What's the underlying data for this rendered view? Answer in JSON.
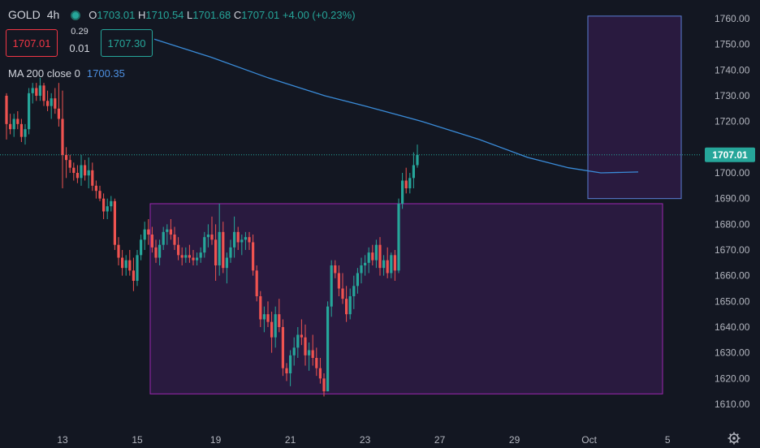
{
  "header": {
    "symbol": "GOLD",
    "timeframe": "4h",
    "open_label": "O",
    "open": "1703.01",
    "high_label": "H",
    "high": "1710.54",
    "low_label": "L",
    "low": "1701.68",
    "close_label": "C",
    "close": "1707.01",
    "change": "+4.00 (+0.23%)"
  },
  "trade": {
    "bid": "1707.01",
    "spread_top": "0.29",
    "spread_bottom": "0.01",
    "ask": "1707.30"
  },
  "indicator": {
    "label": "MA 200 close 0",
    "value": "1700.35"
  },
  "colors": {
    "background": "#131722",
    "up": "#26a69a",
    "down": "#ef5350",
    "ma": "#3a8bd8",
    "box_fill": "#2e1b44",
    "box_border": "#9c27b0",
    "box2_border": "#5b7fd6",
    "price_tag": "#26a69a"
  },
  "chart_data": {
    "type": "candlestick",
    "title": "GOLD 4h",
    "ylim": [
      1605,
      1765
    ],
    "y_ticks": [
      "1760.00",
      "1750.00",
      "1740.00",
      "1730.00",
      "1720.00",
      "1710.00",
      "1700.00",
      "1690.00",
      "1680.00",
      "1670.00",
      "1660.00",
      "1650.00",
      "1640.00",
      "1630.00",
      "1620.00",
      "1610.00"
    ],
    "y_tick_values": [
      1760,
      1750,
      1740,
      1730,
      1720,
      1710,
      1700,
      1690,
      1680,
      1670,
      1660,
      1650,
      1640,
      1630,
      1620,
      1610
    ],
    "x_ticks": [
      {
        "label": "13",
        "i": 15
      },
      {
        "label": "15",
        "i": 35
      },
      {
        "label": "19",
        "i": 56
      },
      {
        "label": "21",
        "i": 76
      },
      {
        "label": "23",
        "i": 96
      },
      {
        "label": "27",
        "i": 116
      },
      {
        "label": "29",
        "i": 136
      },
      {
        "label": "Oct",
        "i": 156
      },
      {
        "label": "5",
        "i": 177
      }
    ],
    "candles": [
      [
        1730,
        1731,
        1713,
        1719
      ],
      [
        1719,
        1723,
        1715,
        1717
      ],
      [
        1717,
        1723,
        1714,
        1721
      ],
      [
        1721,
        1724,
        1717,
        1719
      ],
      [
        1719,
        1721,
        1712,
        1714
      ],
      [
        1714,
        1719,
        1711,
        1717
      ],
      [
        1717,
        1733,
        1715,
        1731
      ],
      [
        1731,
        1735,
        1727,
        1733
      ],
      [
        1733,
        1735,
        1728,
        1730
      ],
      [
        1730,
        1737,
        1728,
        1734
      ],
      [
        1734,
        1735,
        1726,
        1728
      ],
      [
        1728,
        1732,
        1724,
        1726
      ],
      [
        1726,
        1731,
        1721,
        1729
      ],
      [
        1729,
        1733,
        1723,
        1725
      ],
      [
        1725,
        1735,
        1718,
        1721
      ],
      [
        1721,
        1732,
        1694,
        1707
      ],
      [
        1707,
        1710,
        1698,
        1705
      ],
      [
        1705,
        1707,
        1700,
        1702
      ],
      [
        1702,
        1704,
        1697,
        1700
      ],
      [
        1700,
        1703,
        1696,
        1698
      ],
      [
        1698,
        1707,
        1695,
        1703
      ],
      [
        1703,
        1705,
        1697,
        1699
      ],
      [
        1699,
        1706,
        1694,
        1701
      ],
      [
        1701,
        1704,
        1693,
        1695
      ],
      [
        1695,
        1697,
        1690,
        1693
      ],
      [
        1693,
        1695,
        1689,
        1690
      ],
      [
        1690,
        1692,
        1682,
        1685
      ],
      [
        1685,
        1690,
        1682,
        1687
      ],
      [
        1687,
        1691,
        1685,
        1689
      ],
      [
        1689,
        1690,
        1670,
        1672
      ],
      [
        1672,
        1675,
        1664,
        1667
      ],
      [
        1667,
        1670,
        1660,
        1663
      ],
      [
        1663,
        1668,
        1660,
        1666
      ],
      [
        1666,
        1670,
        1660,
        1662
      ],
      [
        1662,
        1667,
        1654,
        1658
      ],
      [
        1658,
        1670,
        1656,
        1668
      ],
      [
        1668,
        1676,
        1666,
        1674
      ],
      [
        1674,
        1681,
        1670,
        1678
      ],
      [
        1678,
        1682,
        1672,
        1676
      ],
      [
        1676,
        1679,
        1669,
        1671
      ],
      [
        1671,
        1674,
        1665,
        1667
      ],
      [
        1667,
        1674,
        1664,
        1672
      ],
      [
        1672,
        1679,
        1670,
        1677
      ],
      [
        1677,
        1680,
        1672,
        1678
      ],
      [
        1678,
        1682,
        1674,
        1676
      ],
      [
        1676,
        1679,
        1670,
        1672
      ],
      [
        1672,
        1675,
        1666,
        1668
      ],
      [
        1668,
        1671,
        1664,
        1667
      ],
      [
        1667,
        1671,
        1665,
        1668
      ],
      [
        1668,
        1672,
        1665,
        1667
      ],
      [
        1667,
        1670,
        1664,
        1666
      ],
      [
        1666,
        1669,
        1664,
        1667
      ],
      [
        1667,
        1671,
        1665,
        1669
      ],
      [
        1669,
        1677,
        1667,
        1675
      ],
      [
        1675,
        1680,
        1671,
        1676
      ],
      [
        1676,
        1683,
        1672,
        1674
      ],
      [
        1674,
        1680,
        1658,
        1664
      ],
      [
        1664,
        1688,
        1660,
        1677
      ],
      [
        1677,
        1681,
        1661,
        1663
      ],
      [
        1663,
        1669,
        1657,
        1667
      ],
      [
        1667,
        1674,
        1665,
        1671
      ],
      [
        1671,
        1683,
        1667,
        1677
      ],
      [
        1677,
        1679,
        1670,
        1673
      ],
      [
        1673,
        1676,
        1668,
        1674
      ],
      [
        1674,
        1677,
        1670,
        1675
      ],
      [
        1675,
        1677,
        1670,
        1673
      ],
      [
        1673,
        1676,
        1660,
        1662
      ],
      [
        1662,
        1664,
        1650,
        1652
      ],
      [
        1652,
        1654,
        1640,
        1643
      ],
      [
        1643,
        1648,
        1638,
        1645
      ],
      [
        1645,
        1650,
        1640,
        1642
      ],
      [
        1642,
        1646,
        1630,
        1636
      ],
      [
        1636,
        1648,
        1632,
        1645
      ],
      [
        1645,
        1651,
        1638,
        1640
      ],
      [
        1640,
        1643,
        1621,
        1624
      ],
      [
        1624,
        1626,
        1619,
        1622
      ],
      [
        1622,
        1631,
        1617,
        1629
      ],
      [
        1629,
        1636,
        1625,
        1632
      ],
      [
        1632,
        1640,
        1628,
        1637
      ],
      [
        1637,
        1643,
        1633,
        1636
      ],
      [
        1636,
        1641,
        1625,
        1629
      ],
      [
        1629,
        1634,
        1623,
        1631
      ],
      [
        1631,
        1637,
        1625,
        1628
      ],
      [
        1628,
        1632,
        1621,
        1624
      ],
      [
        1624,
        1628,
        1618,
        1620
      ],
      [
        1620,
        1622,
        1613,
        1615
      ],
      [
        1615,
        1650,
        1615,
        1648
      ],
      [
        1648,
        1666,
        1644,
        1664
      ],
      [
        1664,
        1666,
        1659,
        1661
      ],
      [
        1661,
        1664,
        1652,
        1655
      ],
      [
        1655,
        1661,
        1649,
        1651
      ],
      [
        1651,
        1656,
        1642,
        1645
      ],
      [
        1645,
        1655,
        1643,
        1652
      ],
      [
        1652,
        1660,
        1647,
        1656
      ],
      [
        1656,
        1663,
        1653,
        1661
      ],
      [
        1661,
        1667,
        1657,
        1664
      ],
      [
        1664,
        1668,
        1660,
        1665
      ],
      [
        1665,
        1671,
        1661,
        1669
      ],
      [
        1669,
        1672,
        1664,
        1666
      ],
      [
        1666,
        1674,
        1663,
        1672
      ],
      [
        1672,
        1675,
        1660,
        1663
      ],
      [
        1663,
        1668,
        1660,
        1666
      ],
      [
        1666,
        1671,
        1659,
        1661
      ],
      [
        1661,
        1669,
        1659,
        1668
      ],
      [
        1668,
        1670,
        1658,
        1662
      ],
      [
        1662,
        1690,
        1661,
        1688
      ],
      [
        1688,
        1700,
        1686,
        1697
      ],
      [
        1697,
        1702,
        1692,
        1694
      ],
      [
        1694,
        1700,
        1692,
        1698
      ],
      [
        1698,
        1708,
        1694,
        1703
      ],
      [
        1703,
        1711,
        1702,
        1707
      ]
    ],
    "ma200_last": 1700.35,
    "last_price": "1707.01",
    "zones": [
      {
        "y_top": 1688,
        "y_bottom": 1614
      },
      {
        "y_top": 1761,
        "y_bottom": 1690
      }
    ]
  }
}
